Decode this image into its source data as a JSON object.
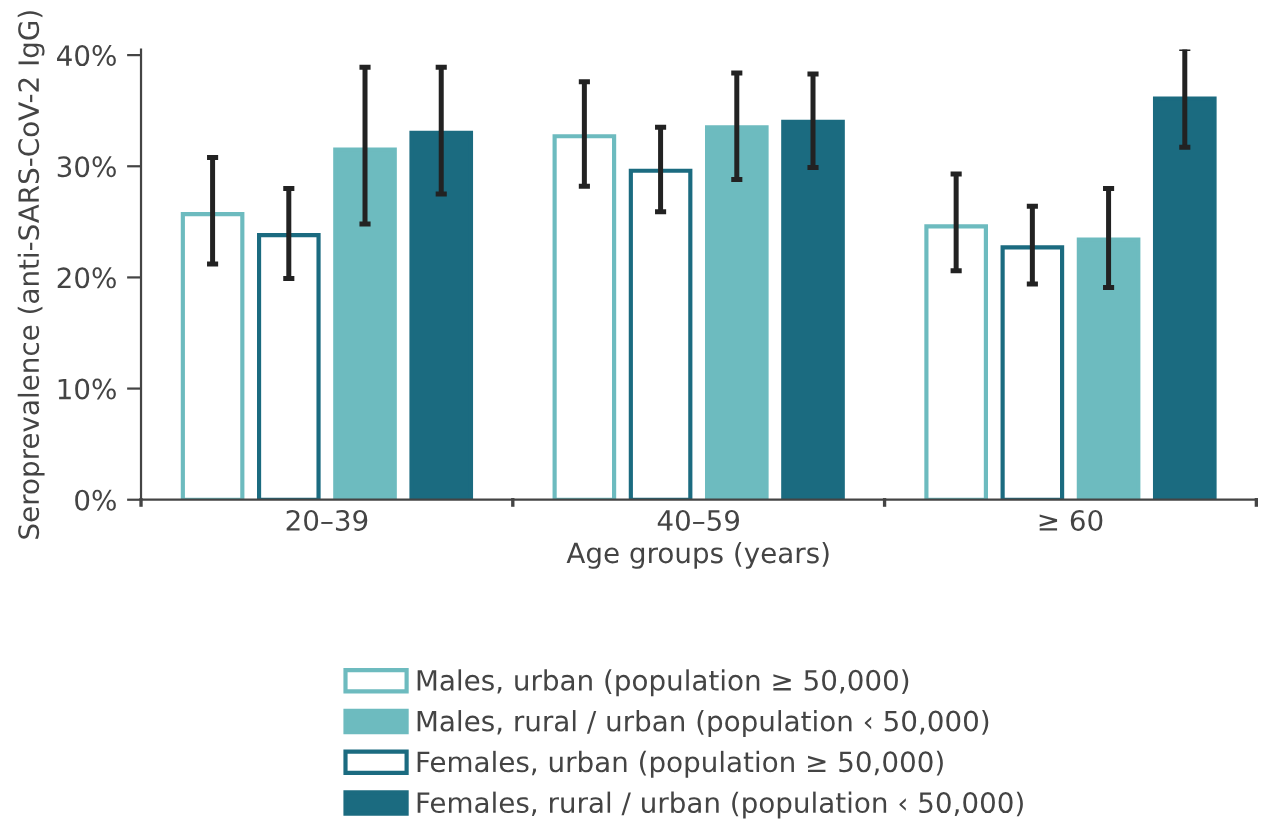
{
  "chart_data": {
    "type": "bar",
    "xlabel": "Age groups (years)",
    "ylabel": "Seroprevalence (anti-SARS-CoV-2 IgG)",
    "categories": [
      "20–39",
      "40–59",
      "≥ 60"
    ],
    "ylim": [
      0,
      40.5
    ],
    "yticks": [
      {
        "value": 0,
        "label": "0%"
      },
      {
        "value": 10,
        "label": "10%"
      },
      {
        "value": 20,
        "label": "20%"
      },
      {
        "value": 30,
        "label": "30%"
      },
      {
        "value": 40,
        "label": "40%"
      }
    ],
    "grid": false,
    "legend": "bottom",
    "series": [
      {
        "name": "Males, urban (population ≥ 50,000)",
        "color": "#6dbbbf",
        "values": [
          25.7,
          32.7,
          24.6
        ],
        "errors": [
          [
            21.2,
            30.8
          ],
          [
            28.2,
            37.6
          ],
          [
            20.6,
            29.3
          ]
        ]
      },
      {
        "name": "Males, rural / urban (population ‹ 50,000)",
        "color": "#6dbbbf",
        "values": [
          31.5,
          33.5,
          23.4
        ],
        "errors": [
          [
            24.8,
            38.9
          ],
          [
            28.8,
            38.4
          ],
          [
            19.1,
            28.0
          ]
        ]
      },
      {
        "name": "Females, urban (population ≥ 50,000)",
        "color": "#1b6b80",
        "values": [
          23.8,
          29.6,
          22.7
        ],
        "errors": [
          [
            19.9,
            28.0
          ],
          [
            25.9,
            33.5
          ],
          [
            19.4,
            26.4
          ]
        ]
      },
      {
        "name": "Females, rural / urban (population ‹ 50,000)",
        "color": "#1b6b80",
        "values": [
          33.0,
          34.0,
          36.1
        ],
        "errors": [
          [
            27.5,
            38.9
          ],
          [
            29.9,
            38.3
          ],
          [
            31.7,
            40.6
          ]
        ]
      }
    ]
  }
}
